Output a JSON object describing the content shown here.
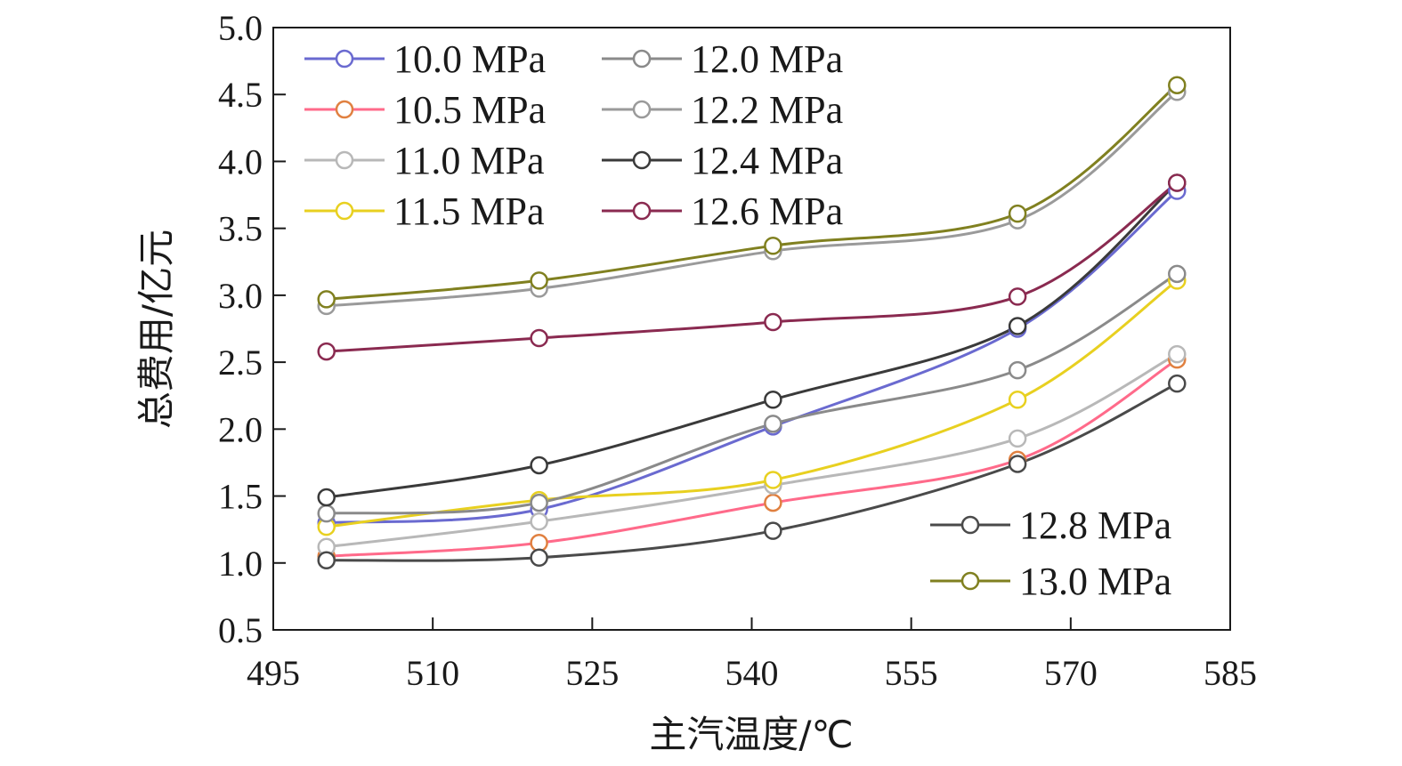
{
  "chart_data": {
    "type": "line",
    "xlabel": "主汽温度/℃",
    "ylabel": "总费用/亿元",
    "xlim": [
      495,
      585
    ],
    "ylim": [
      0.5,
      5.0
    ],
    "xticks": [
      495,
      510,
      525,
      540,
      555,
      570,
      585
    ],
    "yticks": [
      0.5,
      1.0,
      1.5,
      2.0,
      2.5,
      3.0,
      3.5,
      4.0,
      4.5,
      5.0
    ],
    "x": [
      500,
      520,
      542,
      565,
      580
    ],
    "grid": false,
    "legend_entries": [
      "10.0 MPa",
      "10.5 MPa",
      "11.0 MPa",
      "11.5 MPa",
      "12.0 MPa",
      "12.2 MPa",
      "12.4 MPa",
      "12.6 MPa",
      "12.8 MPa",
      "13.0 MPa"
    ],
    "series": [
      {
        "name": "10.0 MPa",
        "color": "#6a6ad0",
        "values": [
          1.3,
          1.4,
          2.02,
          2.75,
          3.78
        ]
      },
      {
        "name": "10.5 MPa",
        "color": "#e08040",
        "values": [
          1.05,
          1.15,
          1.45,
          1.77,
          2.52
        ]
      },
      {
        "name": "11.0 MPa",
        "color": "#b8b8b8",
        "values": [
          1.12,
          1.31,
          1.58,
          1.93,
          2.56
        ]
      },
      {
        "name": "11.5 MPa",
        "color": "#e8d020",
        "values": [
          1.27,
          1.47,
          1.62,
          2.22,
          3.11
        ]
      },
      {
        "name": "12.0 MPa",
        "color": "#8a8a8a",
        "values": [
          1.37,
          1.45,
          2.04,
          2.44,
          3.16
        ]
      },
      {
        "name": "12.2 MPa",
        "color": "#9a9a9a",
        "values": [
          2.92,
          3.05,
          3.33,
          3.56,
          4.52
        ]
      },
      {
        "name": "12.4 MPa",
        "color": "#3a3a3a",
        "values": [
          1.49,
          1.73,
          2.22,
          2.77,
          3.84
        ]
      },
      {
        "name": "12.6 MPa",
        "color": "#8a2a50",
        "values": [
          2.58,
          2.68,
          2.8,
          2.99,
          3.84
        ]
      },
      {
        "name": "12.8 MPa",
        "color": "#4a4a4a",
        "values": [
          1.02,
          1.04,
          1.24,
          1.74,
          2.34
        ]
      },
      {
        "name": "13.0 MPa",
        "color": "#808020",
        "values": [
          2.97,
          3.11,
          3.37,
          3.61,
          4.57
        ]
      }
    ],
    "series_line_colors": {
      "10.5 MPa": "#ff6a8a"
    },
    "legend_placement": [
      "top-left (two columns, 8 entries)",
      "bottom-right (2 entries)"
    ]
  }
}
